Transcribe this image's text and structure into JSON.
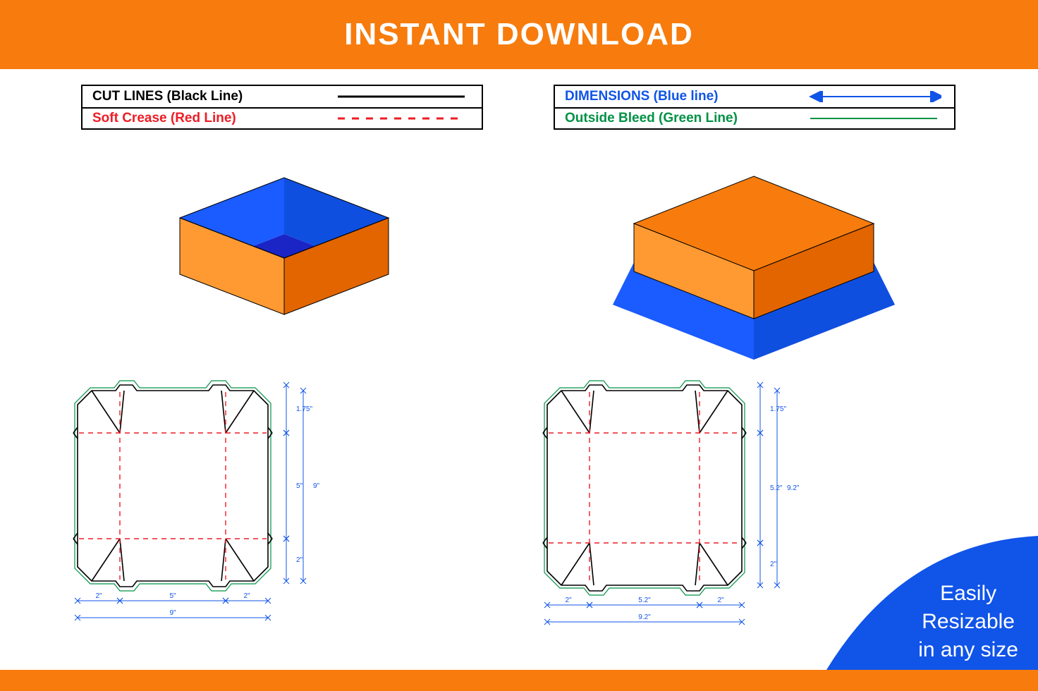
{
  "colors": {
    "orange": "#f77c0d",
    "orange_lt": "#ff9a33",
    "orange_dk": "#e26500",
    "blue_bright": "#1a5cff",
    "blue_dk": "#1b24c4",
    "blue_mid": "#0f4fe0",
    "badge_blue": "#1054e8",
    "black": "#000000",
    "red": "#ee1c25",
    "green": "#009245",
    "dim_blue": "#1054e8",
    "white": "#ffffff"
  },
  "header": {
    "title": "INSTANT DOWNLOAD"
  },
  "legend": {
    "left": [
      {
        "label": "CUT LINES (Black Line)",
        "color": "#000000",
        "style": "solid"
      },
      {
        "label": "Soft Crease (Red Line)",
        "color": "#ee1c25",
        "style": "dashed"
      }
    ],
    "right": [
      {
        "label": "DIMENSIONS (Blue line)",
        "color": "#1054e8",
        "style": "arrow"
      },
      {
        "label": "Outside Bleed (Green Line)",
        "color": "#009245",
        "style": "solid"
      }
    ]
  },
  "badge": {
    "line1": "Easily",
    "line2": "Resizable",
    "line3": "in any size"
  },
  "dieline_left": {
    "outer_w": "9\"",
    "outer_h": "9\"",
    "side": "2\"",
    "center": "5\"",
    "top_flap": "1.75\"",
    "side_h": "2\""
  },
  "dieline_right": {
    "outer_w": "9.2\"",
    "outer_h": "9.2\"",
    "side": "2\"",
    "center": "5.2\"",
    "top_flap": "1.75\"",
    "side_h": "2\""
  }
}
